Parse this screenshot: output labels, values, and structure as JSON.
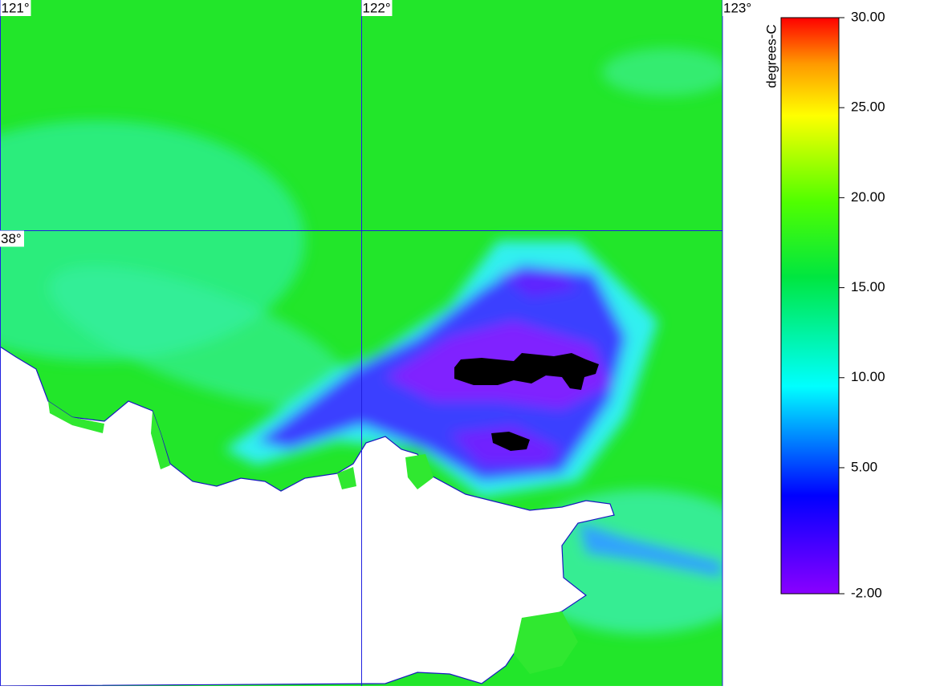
{
  "map": {
    "lon_ticks": [
      {
        "value": 121,
        "label": "121°"
      },
      {
        "value": 122,
        "label": "122°"
      },
      {
        "value": 123,
        "label": "123°"
      }
    ],
    "lat_ticks": [
      {
        "value": 38,
        "label": "38°"
      }
    ]
  },
  "colorbar": {
    "unit": "degrees-C",
    "ticks": [
      {
        "value": 30,
        "label": "30.00"
      },
      {
        "value": 25,
        "label": "25.00"
      },
      {
        "value": 20,
        "label": "20.00"
      },
      {
        "value": 15,
        "label": "15.00"
      },
      {
        "value": 10,
        "label": "10.00"
      },
      {
        "value": 5,
        "label": "5.00"
      },
      {
        "value": -2,
        "label": "-2.00"
      }
    ]
  }
}
